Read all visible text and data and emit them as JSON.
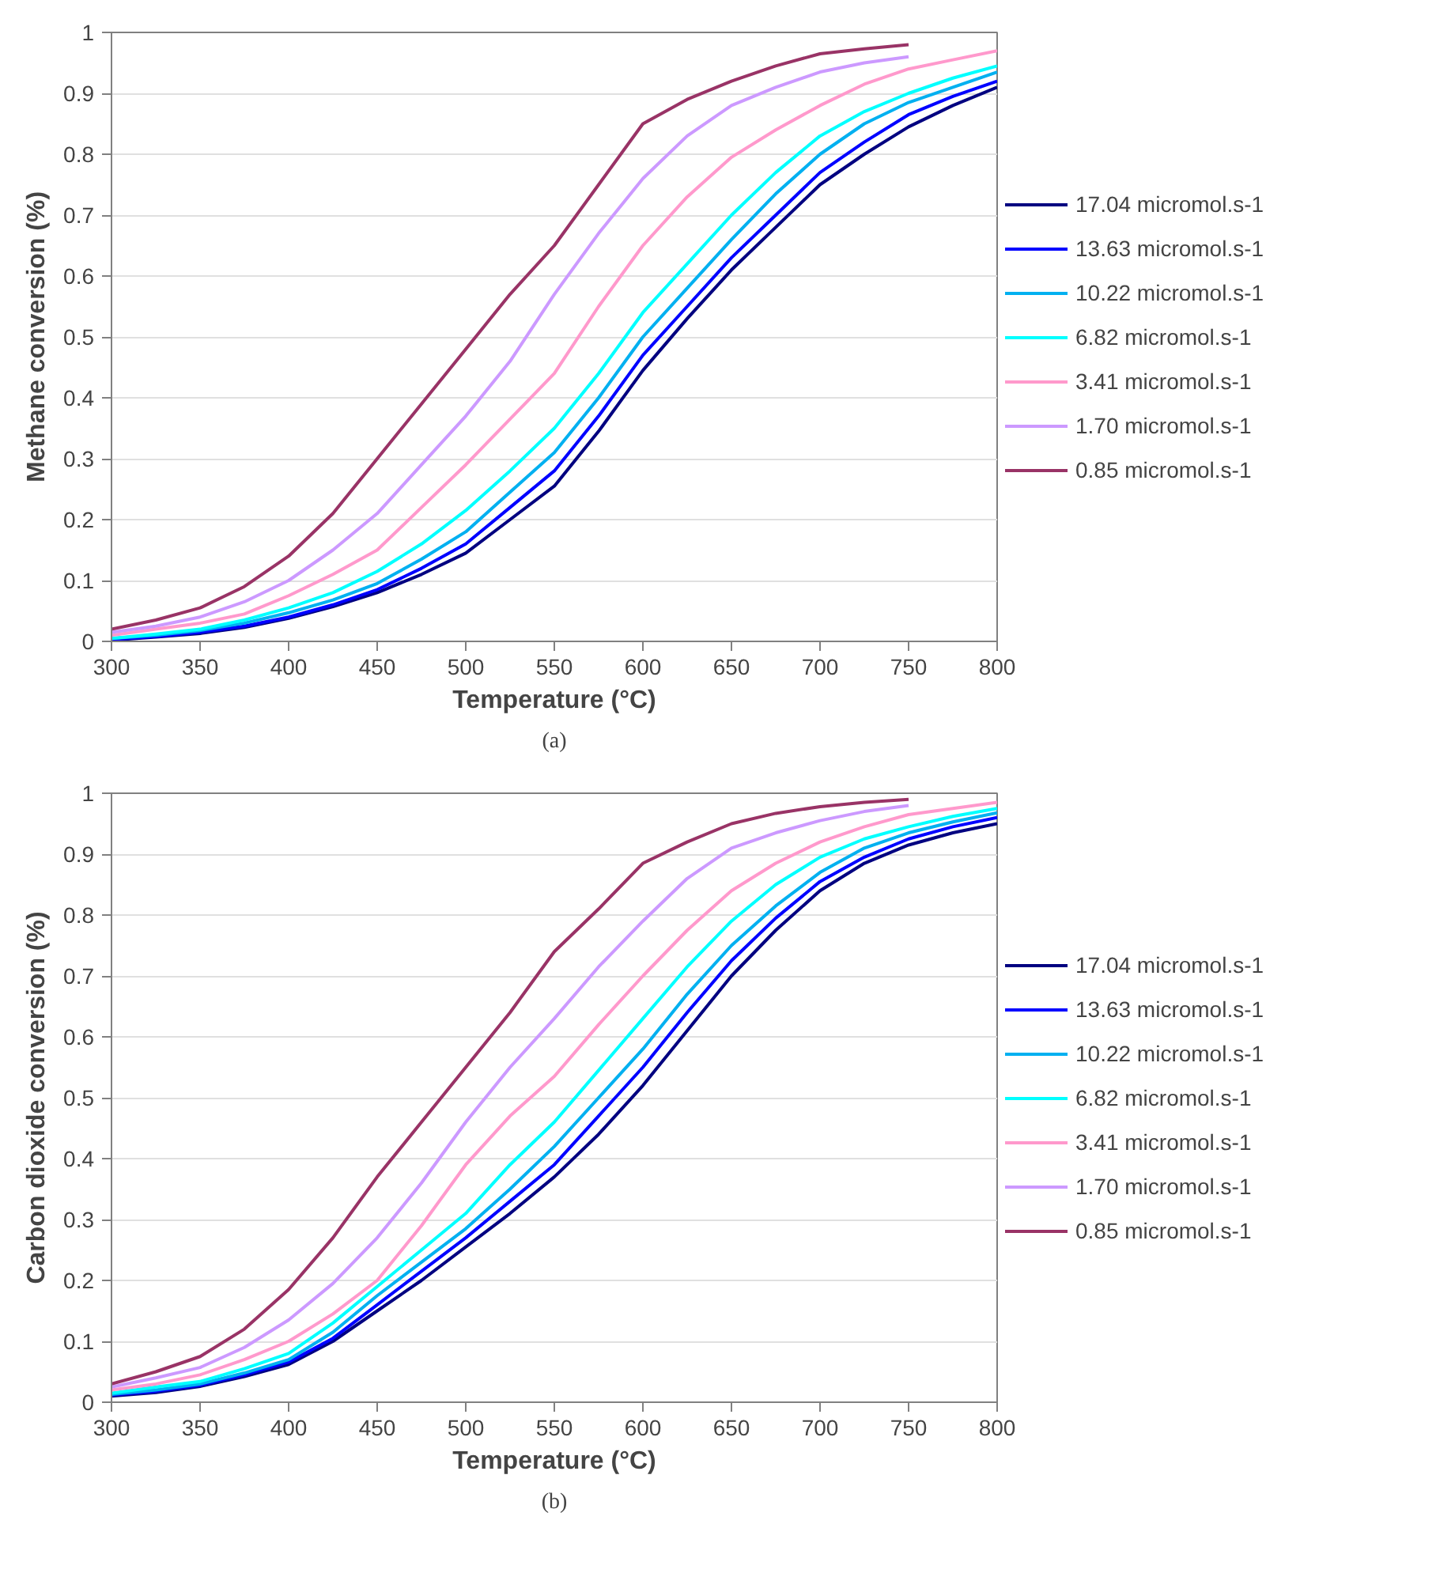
{
  "chart_data": [
    {
      "type": "line",
      "xlabel": "Temperature (°C)",
      "ylabel": "Methane conversion (%)",
      "annotations": [
        "(a)"
      ],
      "xlim": [
        300,
        800
      ],
      "ylim": [
        0,
        1
      ],
      "xticks": [
        300,
        350,
        400,
        450,
        500,
        550,
        600,
        650,
        700,
        750,
        800
      ],
      "yticks": [
        0,
        0.1,
        0.2,
        0.3,
        0.4,
        0.5,
        0.6,
        0.7,
        0.8,
        0.9,
        1
      ],
      "grid": "y",
      "legend": "right",
      "line_style": "solid",
      "x": [
        300,
        325,
        350,
        375,
        400,
        425,
        450,
        475,
        500,
        525,
        550,
        575,
        600,
        625,
        650,
        675,
        700,
        725,
        750,
        775,
        800
      ],
      "series": [
        {
          "name": "17.04 micromol.s-1",
          "color": "#000080",
          "values": [
            0.002,
            0.007,
            0.013,
            0.023,
            0.038,
            0.057,
            0.08,
            0.11,
            0.145,
            0.2,
            0.255,
            0.345,
            0.445,
            0.53,
            0.61,
            0.68,
            0.75,
            0.8,
            0.845,
            0.88,
            0.91
          ]
        },
        {
          "name": "13.63 micromol.s-1",
          "color": "#0000ff",
          "values": [
            0.003,
            0.008,
            0.015,
            0.025,
            0.04,
            0.06,
            0.085,
            0.12,
            0.16,
            0.22,
            0.28,
            0.37,
            0.47,
            0.55,
            0.63,
            0.7,
            0.77,
            0.82,
            0.865,
            0.895,
            0.92
          ]
        },
        {
          "name": "10.22 micromol.s-1",
          "color": "#00b0f0",
          "values": [
            0.005,
            0.01,
            0.018,
            0.03,
            0.047,
            0.068,
            0.095,
            0.135,
            0.18,
            0.245,
            0.31,
            0.4,
            0.5,
            0.58,
            0.66,
            0.735,
            0.8,
            0.85,
            0.885,
            0.91,
            0.935
          ]
        },
        {
          "name": "6.82 micromol.s-1",
          "color": "#00ffff",
          "values": [
            0.005,
            0.012,
            0.02,
            0.035,
            0.055,
            0.08,
            0.115,
            0.16,
            0.215,
            0.28,
            0.35,
            0.44,
            0.54,
            0.62,
            0.7,
            0.77,
            0.83,
            0.87,
            0.9,
            0.925,
            0.945
          ]
        },
        {
          "name": "3.41 micromol.s-1",
          "color": "#ff99cc",
          "values": [
            0.01,
            0.02,
            0.03,
            0.045,
            0.075,
            0.11,
            0.15,
            0.22,
            0.29,
            0.365,
            0.44,
            0.55,
            0.65,
            0.73,
            0.795,
            0.84,
            0.88,
            0.915,
            0.94,
            0.955,
            0.97
          ]
        },
        {
          "name": "1.70 micromol.s-1",
          "color": "#cc99ff",
          "values": [
            0.015,
            0.025,
            0.04,
            0.065,
            0.1,
            0.15,
            0.21,
            0.29,
            0.37,
            0.46,
            0.57,
            0.67,
            0.76,
            0.83,
            0.88,
            0.91,
            0.935,
            0.95,
            0.96,
            null,
            null
          ]
        },
        {
          "name": "0.85 micromol.s-1",
          "color": "#993366",
          "values": [
            0.02,
            0.035,
            0.055,
            0.09,
            0.14,
            0.21,
            0.3,
            0.39,
            0.48,
            0.57,
            0.65,
            0.75,
            0.85,
            0.89,
            0.92,
            0.945,
            0.965,
            0.973,
            0.98,
            null,
            null
          ]
        }
      ]
    },
    {
      "type": "line",
      "xlabel": "Temperature (°C)",
      "ylabel": "Carbon dioxide conversion (%)",
      "annotations": [
        "(b)"
      ],
      "xlim": [
        300,
        800
      ],
      "ylim": [
        0,
        1
      ],
      "xticks": [
        300,
        350,
        400,
        450,
        500,
        550,
        600,
        650,
        700,
        750,
        800
      ],
      "yticks": [
        0,
        0.1,
        0.2,
        0.3,
        0.4,
        0.5,
        0.6,
        0.7,
        0.8,
        0.9,
        1
      ],
      "grid": "y",
      "legend": "right",
      "line_style": "solid",
      "x": [
        300,
        325,
        350,
        375,
        400,
        425,
        450,
        475,
        500,
        525,
        550,
        575,
        600,
        625,
        650,
        675,
        700,
        725,
        750,
        775,
        800
      ],
      "series": [
        {
          "name": "17.04 micromol.s-1",
          "color": "#000080",
          "values": [
            0.01,
            0.016,
            0.026,
            0.042,
            0.062,
            0.1,
            0.15,
            0.2,
            0.255,
            0.31,
            0.37,
            0.44,
            0.52,
            0.61,
            0.7,
            0.775,
            0.84,
            0.885,
            0.915,
            0.935,
            0.95
          ]
        },
        {
          "name": "13.63 micromol.s-1",
          "color": "#0000ff",
          "values": [
            0.012,
            0.018,
            0.028,
            0.045,
            0.066,
            0.105,
            0.16,
            0.215,
            0.27,
            0.33,
            0.39,
            0.47,
            0.55,
            0.64,
            0.725,
            0.795,
            0.855,
            0.895,
            0.925,
            0.945,
            0.96
          ]
        },
        {
          "name": "10.22 micromol.s-1",
          "color": "#00b0f0",
          "values": [
            0.013,
            0.02,
            0.03,
            0.048,
            0.07,
            0.115,
            0.175,
            0.23,
            0.285,
            0.35,
            0.42,
            0.5,
            0.58,
            0.67,
            0.75,
            0.815,
            0.87,
            0.91,
            0.935,
            0.953,
            0.968
          ]
        },
        {
          "name": "6.82 micromol.s-1",
          "color": "#00ffff",
          "values": [
            0.015,
            0.025,
            0.034,
            0.055,
            0.08,
            0.13,
            0.19,
            0.25,
            0.31,
            0.39,
            0.46,
            0.545,
            0.63,
            0.715,
            0.79,
            0.85,
            0.895,
            0.925,
            0.945,
            0.962,
            0.975
          ]
        },
        {
          "name": "3.41 micromol.s-1",
          "color": "#ff99cc",
          "values": [
            0.02,
            0.03,
            0.045,
            0.07,
            0.1,
            0.145,
            0.2,
            0.29,
            0.39,
            0.47,
            0.535,
            0.62,
            0.7,
            0.775,
            0.84,
            0.885,
            0.92,
            0.945,
            0.965,
            0.975,
            0.985
          ]
        },
        {
          "name": "1.70 micromol.s-1",
          "color": "#cc99ff",
          "values": [
            0.025,
            0.04,
            0.057,
            0.09,
            0.135,
            0.195,
            0.27,
            0.36,
            0.46,
            0.55,
            0.63,
            0.715,
            0.79,
            0.86,
            0.91,
            0.935,
            0.955,
            0.97,
            0.98,
            null,
            null
          ]
        },
        {
          "name": "0.85 micromol.s-1",
          "color": "#993366",
          "values": [
            0.03,
            0.05,
            0.075,
            0.12,
            0.185,
            0.27,
            0.37,
            0.46,
            0.55,
            0.64,
            0.74,
            0.81,
            0.885,
            0.92,
            0.95,
            0.967,
            0.978,
            0.985,
            0.99,
            null,
            null
          ]
        }
      ]
    }
  ]
}
